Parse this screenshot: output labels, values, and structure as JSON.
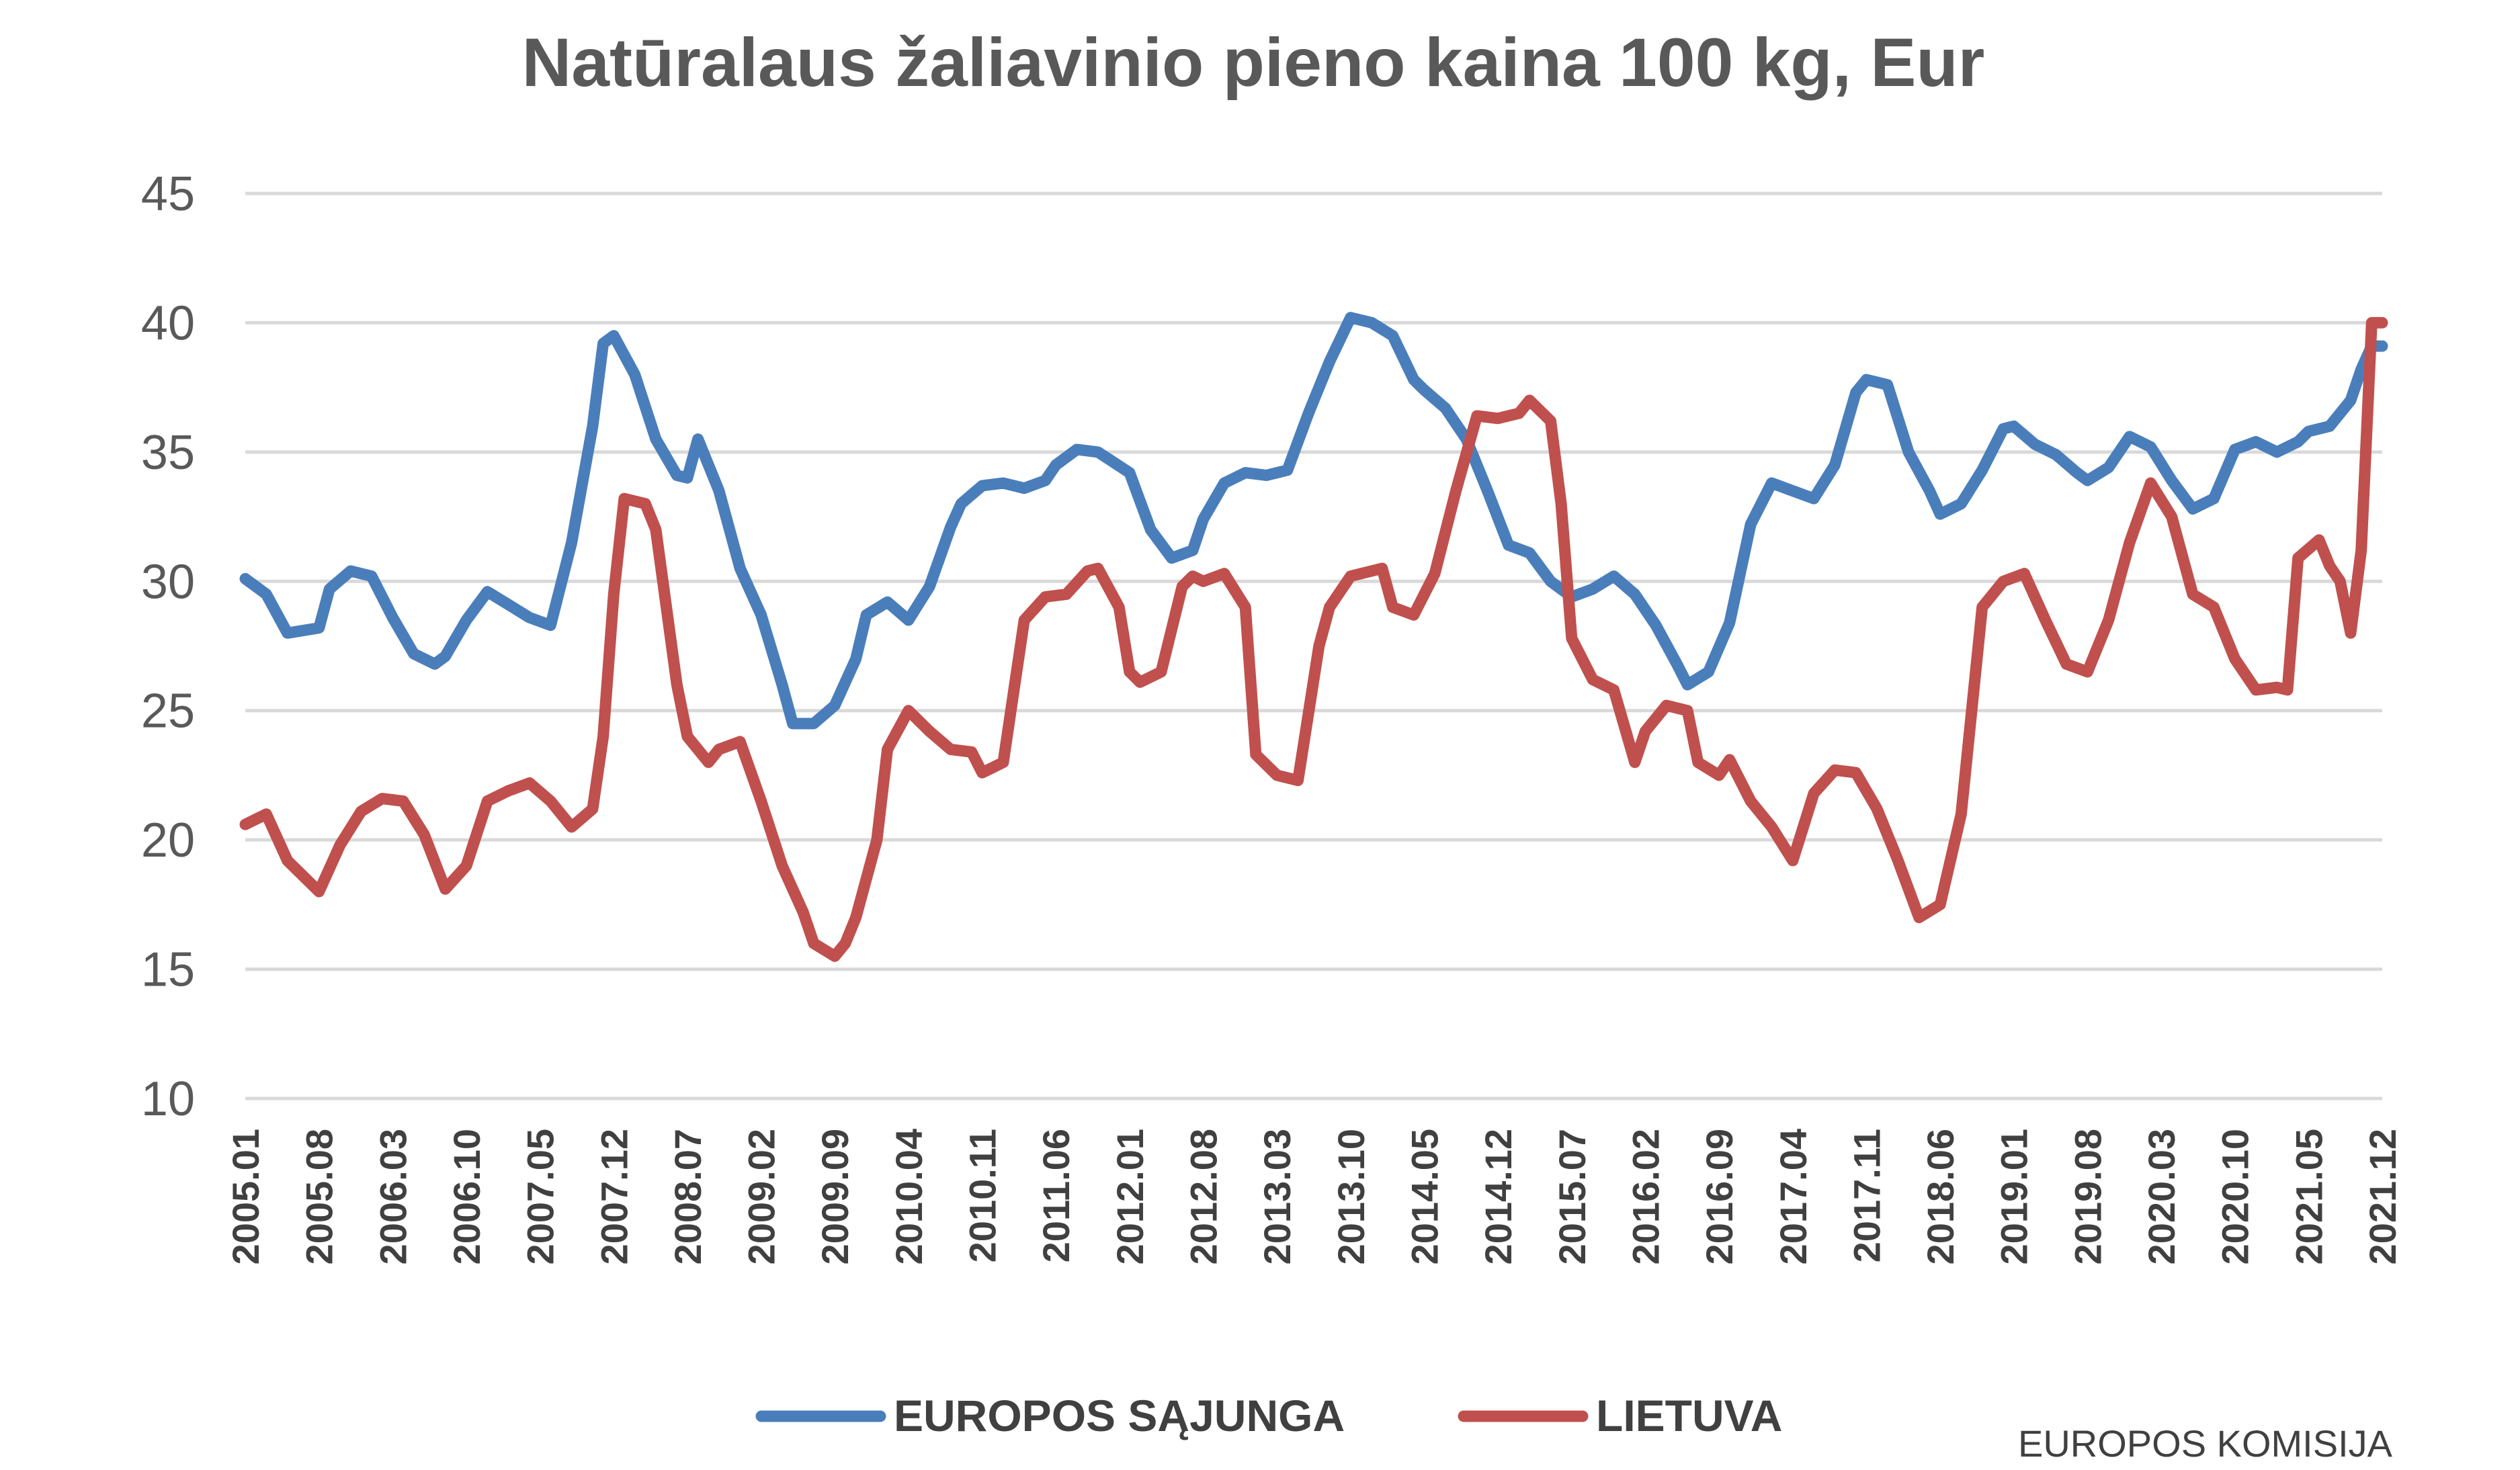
{
  "chart_data": {
    "type": "line",
    "title": "Natūralaus žaliavinio pieno kaina 100 kg, Eur",
    "ylim": [
      10,
      45
    ],
    "yticks": [
      "10",
      "15",
      "20",
      "25",
      "30",
      "35",
      "40",
      "45"
    ],
    "grid": true,
    "legend_position": "bottom",
    "x_range": [
      "2005.01",
      "2021.12"
    ],
    "x_tick_labels": [
      "2005.01",
      "2005.08",
      "2006.03",
      "2006.10",
      "2007.05",
      "2007.12",
      "2008.07",
      "2009.02",
      "2009.09",
      "2010.04",
      "2010.11",
      "2011.06",
      "2012.01",
      "2012.08",
      "2013.03",
      "2013.10",
      "2014.05",
      "2014.12",
      "2015.07",
      "2016.02",
      "2016.09",
      "2017.04",
      "2017.11",
      "2018.06",
      "2019.01",
      "2019.08",
      "2020.03",
      "2020.10",
      "2021.05",
      "2021.12"
    ],
    "series": [
      {
        "name": "EUROPOS SĄJUNGA",
        "color": "#4A7EBB",
        "points": [
          [
            "2005.01",
            30.1
          ],
          [
            "2005.03",
            29.5
          ],
          [
            "2005.05",
            28.0
          ],
          [
            "2005.08",
            28.2
          ],
          [
            "2005.09",
            29.7
          ],
          [
            "2005.11",
            30.4
          ],
          [
            "2006.01",
            30.2
          ],
          [
            "2006.03",
            28.6
          ],
          [
            "2006.05",
            27.2
          ],
          [
            "2006.07",
            26.8
          ],
          [
            "2006.08",
            27.1
          ],
          [
            "2006.10",
            28.5
          ],
          [
            "2006.12",
            29.6
          ],
          [
            "2007.02",
            29.1
          ],
          [
            "2007.04",
            28.6
          ],
          [
            "2007.06",
            28.3
          ],
          [
            "2007.08",
            31.5
          ],
          [
            "2007.10",
            36.0
          ],
          [
            "2007.11",
            39.2
          ],
          [
            "2007.12",
            39.5
          ],
          [
            "2008.02",
            38.0
          ],
          [
            "2008.04",
            35.5
          ],
          [
            "2008.06",
            34.1
          ],
          [
            "2008.07",
            34.0
          ],
          [
            "2008.08",
            35.5
          ],
          [
            "2008.10",
            33.5
          ],
          [
            "2008.12",
            30.5
          ],
          [
            "2009.02",
            28.7
          ],
          [
            "2009.04",
            26.0
          ],
          [
            "2009.05",
            24.5
          ],
          [
            "2009.07",
            24.5
          ],
          [
            "2009.09",
            25.2
          ],
          [
            "2009.11",
            27.0
          ],
          [
            "2009.12",
            28.7
          ],
          [
            "2010.02",
            29.2
          ],
          [
            "2010.04",
            28.5
          ],
          [
            "2010.06",
            29.8
          ],
          [
            "2010.08",
            32.1
          ],
          [
            "2010.09",
            33.0
          ],
          [
            "2010.11",
            33.7
          ],
          [
            "2011.01",
            33.8
          ],
          [
            "2011.03",
            33.6
          ],
          [
            "2011.05",
            33.9
          ],
          [
            "2011.06",
            34.5
          ],
          [
            "2011.08",
            35.1
          ],
          [
            "2011.10",
            35.0
          ],
          [
            "2012.01",
            34.2
          ],
          [
            "2012.03",
            32.0
          ],
          [
            "2012.05",
            30.9
          ],
          [
            "2012.07",
            31.2
          ],
          [
            "2012.08",
            32.4
          ],
          [
            "2012.10",
            33.8
          ],
          [
            "2012.12",
            34.2
          ],
          [
            "2013.02",
            34.1
          ],
          [
            "2013.04",
            34.3
          ],
          [
            "2013.06",
            36.5
          ],
          [
            "2013.08",
            38.5
          ],
          [
            "2013.10",
            40.2
          ],
          [
            "2013.12",
            40.0
          ],
          [
            "2014.02",
            39.5
          ],
          [
            "2014.04",
            37.8
          ],
          [
            "2014.05",
            37.4
          ],
          [
            "2014.07",
            36.7
          ],
          [
            "2014.09",
            35.5
          ],
          [
            "2014.11",
            33.5
          ],
          [
            "2015.01",
            31.4
          ],
          [
            "2015.03",
            31.1
          ],
          [
            "2015.05",
            30.0
          ],
          [
            "2015.07",
            29.4
          ],
          [
            "2015.09",
            29.7
          ],
          [
            "2015.11",
            30.2
          ],
          [
            "2016.01",
            29.5
          ],
          [
            "2016.03",
            28.3
          ],
          [
            "2016.05",
            26.8
          ],
          [
            "2016.06",
            26.0
          ],
          [
            "2016.08",
            26.5
          ],
          [
            "2016.10",
            28.4
          ],
          [
            "2016.12",
            32.2
          ],
          [
            "2017.02",
            33.8
          ],
          [
            "2017.04",
            33.5
          ],
          [
            "2017.06",
            33.2
          ],
          [
            "2017.08",
            34.5
          ],
          [
            "2017.10",
            37.3
          ],
          [
            "2017.11",
            37.8
          ],
          [
            "2018.01",
            37.6
          ],
          [
            "2018.03",
            35.0
          ],
          [
            "2018.05",
            33.5
          ],
          [
            "2018.06",
            32.6
          ],
          [
            "2018.08",
            33.0
          ],
          [
            "2018.10",
            34.3
          ],
          [
            "2018.12",
            35.9
          ],
          [
            "2019.01",
            36.0
          ],
          [
            "2019.03",
            35.3
          ],
          [
            "2019.05",
            34.9
          ],
          [
            "2019.07",
            34.2
          ],
          [
            "2019.08",
            33.9
          ],
          [
            "2019.10",
            34.4
          ],
          [
            "2019.12",
            35.6
          ],
          [
            "2020.02",
            35.2
          ],
          [
            "2020.04",
            33.9
          ],
          [
            "2020.06",
            32.8
          ],
          [
            "2020.08",
            33.2
          ],
          [
            "2020.10",
            35.1
          ],
          [
            "2020.12",
            35.4
          ],
          [
            "2021.02",
            35.0
          ],
          [
            "2021.04",
            35.4
          ],
          [
            "2021.05",
            35.8
          ],
          [
            "2021.07",
            36.0
          ],
          [
            "2021.09",
            37.0
          ],
          [
            "2021.10",
            38.2
          ],
          [
            "2021.11",
            39.1
          ],
          [
            "2021.12",
            39.1
          ]
        ]
      },
      {
        "name": "LIETUVA",
        "color": "#C0504D",
        "points": [
          [
            "2005.01",
            20.6
          ],
          [
            "2005.03",
            21.0
          ],
          [
            "2005.05",
            19.2
          ],
          [
            "2005.08",
            18.0
          ],
          [
            "2005.10",
            19.8
          ],
          [
            "2005.12",
            21.1
          ],
          [
            "2006.02",
            21.6
          ],
          [
            "2006.04",
            21.5
          ],
          [
            "2006.06",
            20.2
          ],
          [
            "2006.08",
            18.1
          ],
          [
            "2006.10",
            19.0
          ],
          [
            "2006.12",
            21.5
          ],
          [
            "2007.02",
            21.9
          ],
          [
            "2007.04",
            22.2
          ],
          [
            "2007.06",
            21.5
          ],
          [
            "2007.08",
            20.5
          ],
          [
            "2007.10",
            21.2
          ],
          [
            "2007.11",
            24.0
          ],
          [
            "2007.12",
            29.5
          ],
          [
            "2008.01",
            33.2
          ],
          [
            "2008.03",
            33.0
          ],
          [
            "2008.04",
            32.0
          ],
          [
            "2008.06",
            26.0
          ],
          [
            "2008.07",
            24.0
          ],
          [
            "2008.09",
            23.0
          ],
          [
            "2008.10",
            23.5
          ],
          [
            "2008.12",
            23.8
          ],
          [
            "2009.02",
            21.5
          ],
          [
            "2009.04",
            19.0
          ],
          [
            "2009.06",
            17.2
          ],
          [
            "2009.07",
            16.0
          ],
          [
            "2009.09",
            15.5
          ],
          [
            "2009.10",
            16.0
          ],
          [
            "2009.11",
            17.0
          ],
          [
            "2010.01",
            20.0
          ],
          [
            "2010.02",
            23.5
          ],
          [
            "2010.04",
            25.0
          ],
          [
            "2010.06",
            24.2
          ],
          [
            "2010.08",
            23.5
          ],
          [
            "2010.10",
            23.4
          ],
          [
            "2010.11",
            22.6
          ],
          [
            "2011.01",
            23.0
          ],
          [
            "2011.03",
            28.5
          ],
          [
            "2011.05",
            29.4
          ],
          [
            "2011.07",
            29.5
          ],
          [
            "2011.09",
            30.4
          ],
          [
            "2011.10",
            30.5
          ],
          [
            "2011.12",
            29.0
          ],
          [
            "2012.01",
            26.5
          ],
          [
            "2012.02",
            26.1
          ],
          [
            "2012.04",
            26.5
          ],
          [
            "2012.06",
            29.8
          ],
          [
            "2012.07",
            30.2
          ],
          [
            "2012.08",
            30.0
          ],
          [
            "2012.10",
            30.3
          ],
          [
            "2012.12",
            29.0
          ],
          [
            "2013.01",
            23.3
          ],
          [
            "2013.03",
            22.5
          ],
          [
            "2013.05",
            22.3
          ],
          [
            "2013.07",
            27.5
          ],
          [
            "2013.08",
            29.0
          ],
          [
            "2013.10",
            30.2
          ],
          [
            "2013.12",
            30.4
          ],
          [
            "2014.01",
            30.5
          ],
          [
            "2014.02",
            29.0
          ],
          [
            "2014.04",
            28.7
          ],
          [
            "2014.06",
            30.3
          ],
          [
            "2014.08",
            33.5
          ],
          [
            "2014.10",
            36.4
          ],
          [
            "2014.12",
            36.3
          ],
          [
            "2015.02",
            36.5
          ],
          [
            "2015.03",
            37.0
          ],
          [
            "2015.05",
            36.2
          ],
          [
            "2015.06",
            33.0
          ],
          [
            "2015.07",
            27.8
          ],
          [
            "2015.09",
            26.2
          ],
          [
            "2015.11",
            25.8
          ],
          [
            "2016.01",
            23.0
          ],
          [
            "2016.02",
            24.2
          ],
          [
            "2016.04",
            25.2
          ],
          [
            "2016.06",
            25.0
          ],
          [
            "2016.07",
            23.0
          ],
          [
            "2016.09",
            22.5
          ],
          [
            "2016.10",
            23.1
          ],
          [
            "2016.12",
            21.5
          ],
          [
            "2017.02",
            20.5
          ],
          [
            "2017.04",
            19.2
          ],
          [
            "2017.06",
            21.8
          ],
          [
            "2017.08",
            22.7
          ],
          [
            "2017.10",
            22.6
          ],
          [
            "2017.12",
            21.2
          ],
          [
            "2018.02",
            19.2
          ],
          [
            "2018.04",
            17.0
          ],
          [
            "2018.06",
            17.5
          ],
          [
            "2018.08",
            21.0
          ],
          [
            "2018.10",
            29.0
          ],
          [
            "2018.12",
            30.0
          ],
          [
            "2019.02",
            30.3
          ],
          [
            "2019.04",
            28.5
          ],
          [
            "2019.06",
            26.8
          ],
          [
            "2019.08",
            26.5
          ],
          [
            "2019.10",
            28.5
          ],
          [
            "2019.12",
            31.5
          ],
          [
            "2020.02",
            33.8
          ],
          [
            "2020.04",
            32.5
          ],
          [
            "2020.06",
            29.5
          ],
          [
            "2020.08",
            29.0
          ],
          [
            "2020.10",
            27.0
          ],
          [
            "2020.12",
            25.8
          ],
          [
            "2021.02",
            25.9
          ],
          [
            "2021.03",
            25.8
          ],
          [
            "2021.04",
            30.9
          ],
          [
            "2021.06",
            31.6
          ],
          [
            "2021.07",
            30.6
          ],
          [
            "2021.08",
            30.0
          ],
          [
            "2021.09",
            28.0
          ],
          [
            "2021.10",
            31.2
          ],
          [
            "2021.11",
            40.0
          ],
          [
            "2021.12",
            40.0
          ]
        ]
      }
    ]
  },
  "source_label": "EUROPOS KOMISIJA"
}
